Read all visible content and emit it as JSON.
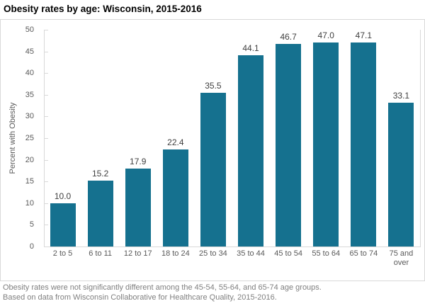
{
  "title": "Obesity rates by age: Wisconsin, 2015-2016",
  "footer": {
    "line1": "Obesity rates were not significantly different among the 45-54, 55-64, and 65-74 age groups.",
    "line2": "Based on data from Wisconsin Collaborative for Healthcare Quality, 2015-2016."
  },
  "chart_data": {
    "type": "bar",
    "title": "Obesity rates by age: Wisconsin, 2015-2016",
    "categories": [
      "2 to 5",
      "6 to 11",
      "12 to 17",
      "18 to 24",
      "25 to 34",
      "35 to 44",
      "45 to 54",
      "55 to 64",
      "65 to 74",
      "75 and over"
    ],
    "values": [
      10.0,
      15.2,
      17.9,
      22.4,
      35.5,
      44.1,
      46.7,
      47.0,
      47.1,
      33.1
    ],
    "data_labels": [
      "10.0",
      "15.2",
      "17.9",
      "22.4",
      "35.5",
      "44.1",
      "46.7",
      "47.0",
      "47.1",
      "33.1"
    ],
    "xlabel": "",
    "ylabel": "Percent with Obesity",
    "ylim": [
      0,
      50
    ],
    "yticks": [
      0,
      5,
      10,
      15,
      20,
      25,
      30,
      35,
      40,
      45,
      50
    ],
    "grid": false,
    "legend": "none",
    "bar_color": "#15718f",
    "axis_color": "#d9d9d9",
    "tick_label_color": "#595959",
    "data_label_color": "#3f3f3f"
  }
}
